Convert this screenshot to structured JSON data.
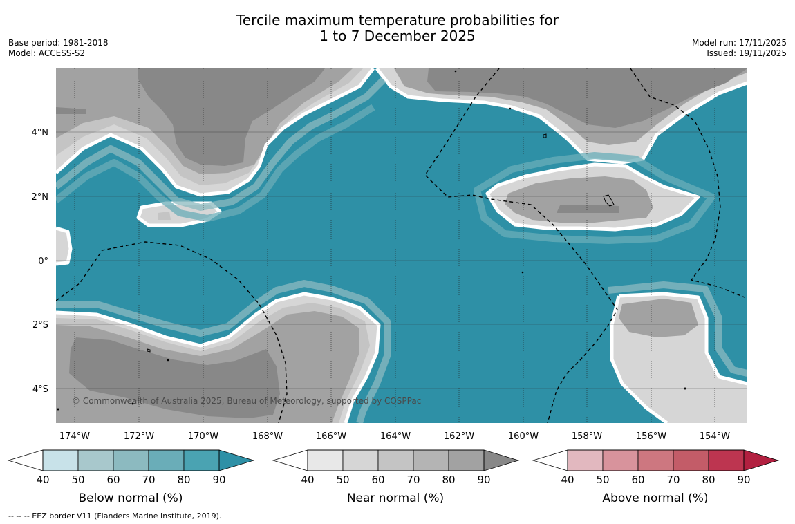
{
  "title_line1": "Tercile maximum temperature probabilities for",
  "title_line2": "1 to 7 December 2025",
  "meta_left": {
    "base_period": "Base period: 1981-2018",
    "model": "Model: ACCESS-S2"
  },
  "meta_right": {
    "model_run": "Model run: 17/11/2025",
    "issued": "Issued: 19/11/2025"
  },
  "map": {
    "lon_ticks": [
      "174°W",
      "172°W",
      "170°W",
      "168°W",
      "166°W",
      "164°W",
      "162°W",
      "160°W",
      "158°W",
      "156°W",
      "154°W"
    ],
    "lat_ticks": [
      "4°N",
      "2°N",
      "0°",
      "2°S",
      "4°S"
    ],
    "copyright": "© Commonwealth of Australia 2025, Bureau of Meteorology, supported by COSPPac"
  },
  "colorbars": [
    {
      "label": "Below normal (%)",
      "ticks": [
        "40",
        "50",
        "60",
        "70",
        "80",
        "90"
      ],
      "colors": [
        "#c8e2e9",
        "#a8c8cc",
        "#8cbac0",
        "#6aadb8",
        "#4aa3b2",
        "#2e90a6"
      ]
    },
    {
      "label": "Near normal (%)",
      "ticks": [
        "40",
        "50",
        "60",
        "70",
        "80",
        "90"
      ],
      "colors": [
        "#e8e8e8",
        "#d6d6d6",
        "#c4c4c4",
        "#b4b4b4",
        "#a2a2a2",
        "#888888"
      ]
    },
    {
      "label": "Above normal (%)",
      "ticks": [
        "40",
        "50",
        "60",
        "70",
        "80",
        "90"
      ],
      "colors": [
        "#e2b8bf",
        "#d8939c",
        "#cd7780",
        "#c35c68",
        "#bd3550",
        "#b22040"
      ]
    }
  ],
  "footnote": "-- -- -- EEZ border V11 (Flanders Marine Institute, 2019)."
}
